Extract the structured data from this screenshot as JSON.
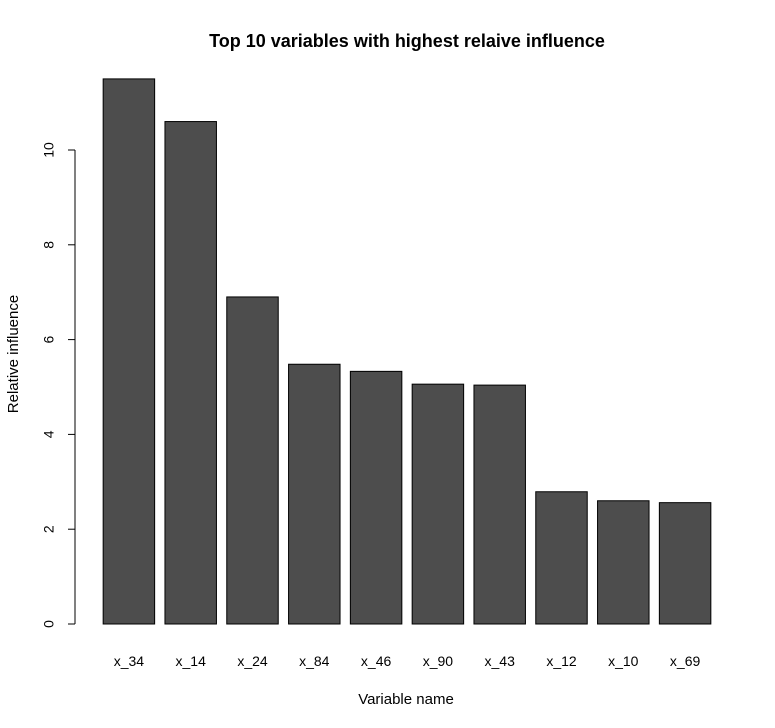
{
  "chart_data": {
    "type": "bar",
    "title": "Top 10 variables with highest relaive influence",
    "xlabel": "Variable name",
    "ylabel": "Relative influence",
    "categories": [
      "x_34",
      "x_14",
      "x_24",
      "x_84",
      "x_46",
      "x_90",
      "x_43",
      "x_12",
      "x_10",
      "x_69"
    ],
    "values": [
      11.5,
      10.6,
      6.9,
      5.48,
      5.33,
      5.06,
      5.04,
      2.79,
      2.6,
      2.56
    ],
    "ylim": [
      0,
      12
    ],
    "yticks": [
      "0",
      "2",
      "4",
      "6",
      "8",
      "10"
    ],
    "bar_color": "#4d4d4d",
    "grid": false
  }
}
